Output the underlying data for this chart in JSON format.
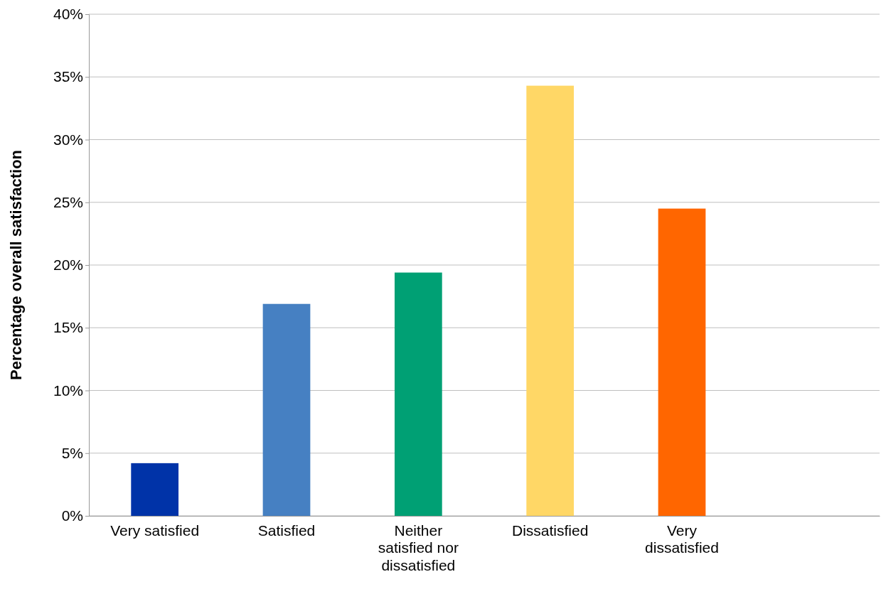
{
  "chart_data": {
    "type": "bar",
    "ylabel": "Percentage overall satisfaction",
    "categories": [
      "Very satisfied",
      "Satisfied",
      "Neither satisfied nor dissatisfied",
      "Dissatisfied",
      "Very dissatisfied",
      null
    ],
    "values": [
      4.2,
      16.9,
      19.4,
      34.3,
      24.5,
      null
    ],
    "colors": [
      "#0033a8",
      "#4680c2",
      "#00a074",
      "#ffd766",
      "#ff6600",
      null
    ],
    "ylim": [
      0,
      40
    ],
    "yticks": [
      {
        "value": 0,
        "label": "0%"
      },
      {
        "value": 5,
        "label": "5%"
      },
      {
        "value": 10,
        "label": "10%"
      },
      {
        "value": 15,
        "label": "15%"
      },
      {
        "value": 20,
        "label": "20%"
      },
      {
        "value": 25,
        "label": "25%"
      },
      {
        "value": 30,
        "label": "30%"
      },
      {
        "value": 35,
        "label": "35%"
      },
      {
        "value": 40,
        "label": "40%"
      }
    ],
    "grid": "y"
  }
}
